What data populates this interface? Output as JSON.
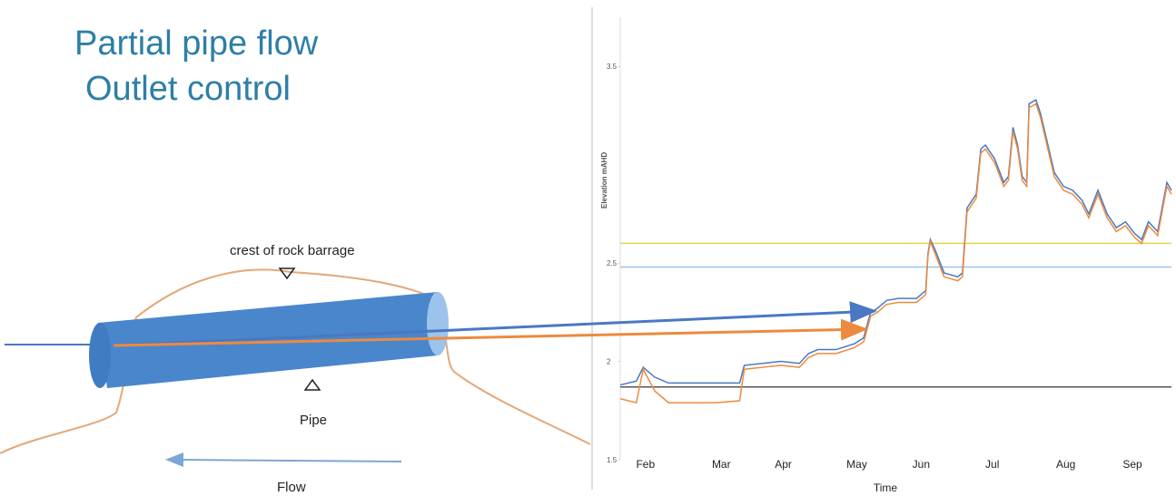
{
  "slide": {
    "title_lines": [
      "Partial pipe flow",
      "Outlet control"
    ]
  },
  "diagram": {
    "crest_label": "crest of rock barrage",
    "pipe_label": "Pipe",
    "flow_label": "Flow"
  },
  "chart_data": {
    "type": "line",
    "ylabel": "Elevation mAHD",
    "xlabel": "Time",
    "x": [
      0,
      7,
      10,
      15,
      21,
      30,
      42,
      52,
      54,
      62,
      70,
      78,
      82,
      86,
      94,
      102,
      106,
      109,
      112,
      116,
      121,
      129,
      133,
      134,
      135,
      137,
      141,
      147,
      149,
      151,
      155,
      157,
      159,
      163,
      167,
      169,
      171,
      173,
      175,
      177,
      178,
      181,
      183,
      189,
      193,
      197,
      201,
      204,
      208,
      212,
      216,
      220,
      224,
      227,
      230,
      234,
      238,
      240
    ],
    "xlim": [
      0,
      240
    ],
    "xticks": [
      {
        "value": 11,
        "label": "Feb"
      },
      {
        "value": 44,
        "label": "Mar"
      },
      {
        "value": 71,
        "label": "Apr"
      },
      {
        "value": 103,
        "label": "May"
      },
      {
        "value": 131,
        "label": "Jun"
      },
      {
        "value": 162,
        "label": "Jul"
      },
      {
        "value": 194,
        "label": "Aug"
      },
      {
        "value": 223,
        "label": "Sep"
      }
    ],
    "ylim": [
      1.5,
      3.75
    ],
    "yticks": [
      1.5,
      2,
      2.5,
      3.5
    ],
    "reference_lines": [
      {
        "value": 2.6,
        "color": "#e8d44d"
      },
      {
        "value": 2.48,
        "color": "#9ec3e6"
      },
      {
        "value": 1.87,
        "color": "#555555"
      }
    ],
    "series": [
      {
        "color": "#4a78c2",
        "values": [
          1.88,
          1.9,
          1.97,
          1.92,
          1.89,
          1.89,
          1.89,
          1.89,
          1.98,
          1.99,
          2.0,
          1.99,
          2.04,
          2.06,
          2.06,
          2.09,
          2.12,
          2.25,
          2.27,
          2.31,
          2.32,
          2.32,
          2.36,
          2.55,
          2.62,
          2.57,
          2.45,
          2.43,
          2.45,
          2.78,
          2.85,
          3.08,
          3.1,
          3.03,
          2.91,
          2.94,
          3.19,
          3.1,
          2.94,
          2.91,
          3.31,
          3.33,
          3.26,
          2.96,
          2.89,
          2.87,
          2.82,
          2.75,
          2.87,
          2.75,
          2.68,
          2.71,
          2.65,
          2.62,
          2.71,
          2.66,
          2.91,
          2.87
        ]
      },
      {
        "color": "#ed8a3f",
        "values": [
          1.81,
          1.79,
          1.96,
          1.85,
          1.79,
          1.79,
          1.79,
          1.8,
          1.96,
          1.97,
          1.98,
          1.97,
          2.02,
          2.04,
          2.04,
          2.07,
          2.1,
          2.23,
          2.25,
          2.29,
          2.3,
          2.3,
          2.34,
          2.54,
          2.61,
          2.55,
          2.43,
          2.41,
          2.43,
          2.76,
          2.83,
          3.06,
          3.08,
          3.01,
          2.89,
          2.92,
          3.17,
          3.08,
          2.92,
          2.89,
          3.29,
          3.31,
          3.24,
          2.94,
          2.87,
          2.85,
          2.8,
          2.73,
          2.85,
          2.73,
          2.66,
          2.69,
          2.63,
          2.6,
          2.69,
          2.64,
          2.89,
          2.85
        ]
      }
    ]
  }
}
